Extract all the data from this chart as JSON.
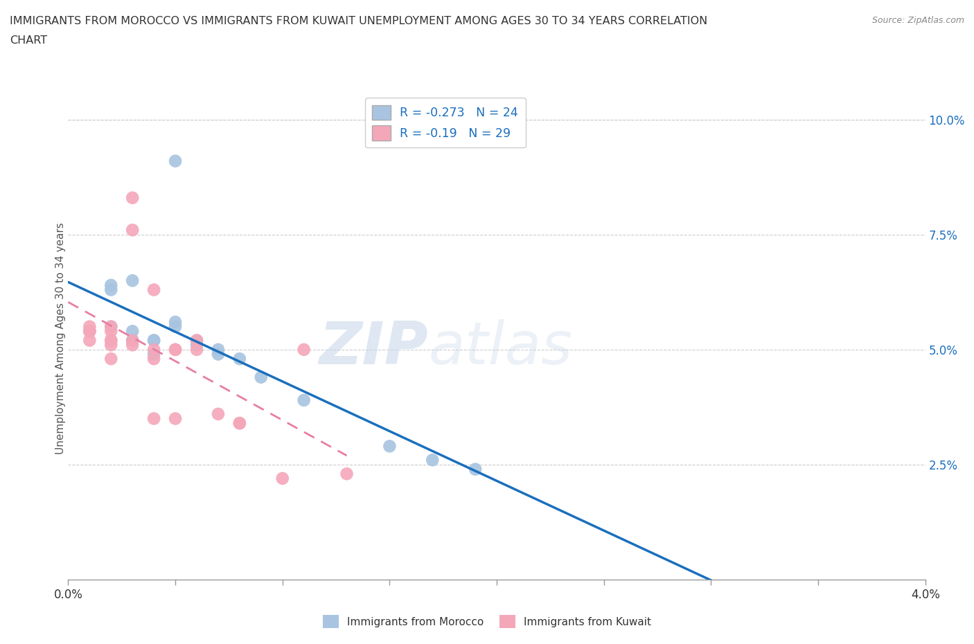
{
  "title_line1": "IMMIGRANTS FROM MOROCCO VS IMMIGRANTS FROM KUWAIT UNEMPLOYMENT AMONG AGES 30 TO 34 YEARS CORRELATION",
  "title_line2": "CHART",
  "source": "Source: ZipAtlas.com",
  "ylabel": "Unemployment Among Ages 30 to 34 years",
  "watermark": "ZIPatlas",
  "xlim": [
    0.0,
    0.04
  ],
  "ylim": [
    0.0,
    0.105
  ],
  "xticks": [
    0.0,
    0.005,
    0.01,
    0.015,
    0.02,
    0.025,
    0.03,
    0.035,
    0.04
  ],
  "xtick_labels_ends": {
    "0.0": "0.0%",
    "0.04": "4.0%"
  },
  "yticks": [
    0.025,
    0.05,
    0.075,
    0.1
  ],
  "ytick_labels": [
    "2.5%",
    "5.0%",
    "7.5%",
    "10.0%"
  ],
  "morocco_color": "#a8c4e0",
  "kuwait_color": "#f4a7b9",
  "trend_morocco_color": "#1a6fbd",
  "trend_kuwait_color": "#e87ea1",
  "morocco_R": -0.273,
  "morocco_N": 24,
  "kuwait_R": -0.19,
  "kuwait_N": 29,
  "morocco_scatter": [
    [
      0.005,
      0.091
    ],
    [
      0.001,
      0.054
    ],
    [
      0.002,
      0.055
    ],
    [
      0.002,
      0.064
    ],
    [
      0.002,
      0.063
    ],
    [
      0.003,
      0.065
    ],
    [
      0.003,
      0.054
    ],
    [
      0.003,
      0.052
    ],
    [
      0.003,
      0.052
    ],
    [
      0.004,
      0.052
    ],
    [
      0.004,
      0.049
    ],
    [
      0.004,
      0.052
    ],
    [
      0.005,
      0.056
    ],
    [
      0.005,
      0.055
    ],
    [
      0.006,
      0.052
    ],
    [
      0.006,
      0.051
    ],
    [
      0.007,
      0.049
    ],
    [
      0.007,
      0.05
    ],
    [
      0.008,
      0.048
    ],
    [
      0.009,
      0.044
    ],
    [
      0.011,
      0.039
    ],
    [
      0.015,
      0.029
    ],
    [
      0.017,
      0.026
    ],
    [
      0.019,
      0.024
    ]
  ],
  "kuwait_scatter": [
    [
      0.001,
      0.054
    ],
    [
      0.001,
      0.054
    ],
    [
      0.001,
      0.055
    ],
    [
      0.001,
      0.052
    ],
    [
      0.002,
      0.054
    ],
    [
      0.002,
      0.052
    ],
    [
      0.002,
      0.051
    ],
    [
      0.002,
      0.052
    ],
    [
      0.002,
      0.048
    ],
    [
      0.002,
      0.055
    ],
    [
      0.003,
      0.083
    ],
    [
      0.003,
      0.076
    ],
    [
      0.003,
      0.052
    ],
    [
      0.003,
      0.051
    ],
    [
      0.004,
      0.063
    ],
    [
      0.004,
      0.048
    ],
    [
      0.004,
      0.05
    ],
    [
      0.004,
      0.035
    ],
    [
      0.005,
      0.05
    ],
    [
      0.005,
      0.05
    ],
    [
      0.005,
      0.035
    ],
    [
      0.006,
      0.052
    ],
    [
      0.006,
      0.05
    ],
    [
      0.007,
      0.036
    ],
    [
      0.008,
      0.034
    ],
    [
      0.008,
      0.034
    ],
    [
      0.01,
      0.022
    ],
    [
      0.011,
      0.05
    ],
    [
      0.013,
      0.023
    ]
  ]
}
